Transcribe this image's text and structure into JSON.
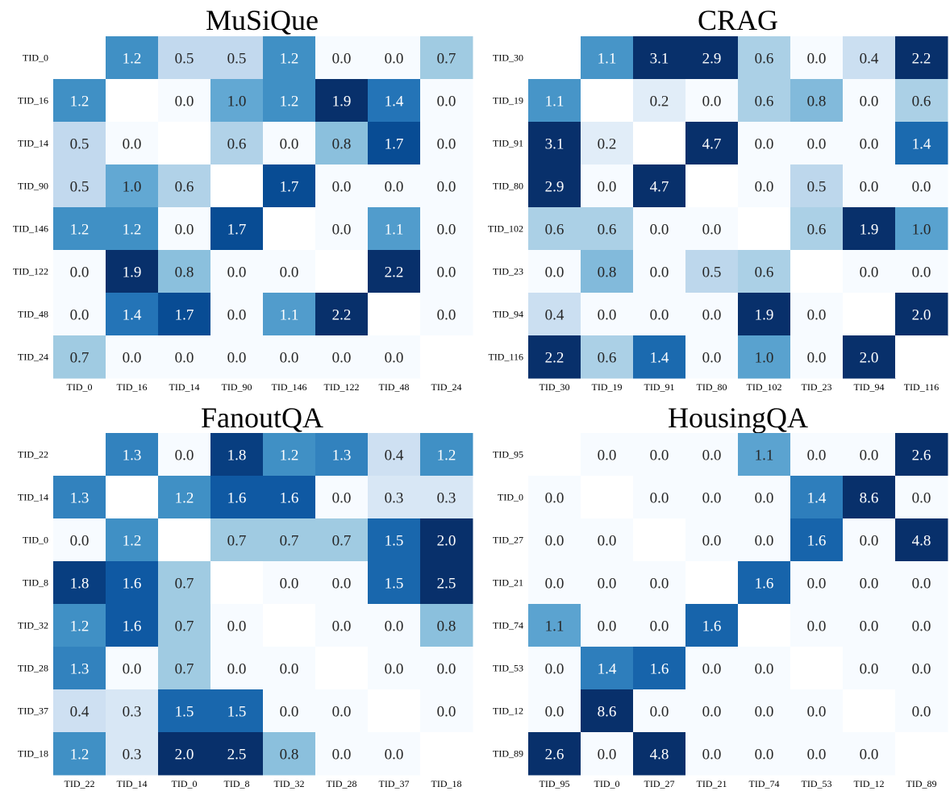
{
  "colormap": {
    "name": "Blues",
    "stops": [
      "#f7fbff",
      "#deebf7",
      "#c6dbef",
      "#9ecae1",
      "#6baed6",
      "#4292c6",
      "#2171b5",
      "#08519c",
      "#08306b"
    ]
  },
  "chart_data": [
    {
      "type": "heatmap",
      "title": "MuSiQue",
      "row_labels": [
        "TID_0",
        "TID_16",
        "TID_14",
        "TID_90",
        "TID_146",
        "TID_122",
        "TID_48",
        "TID_24"
      ],
      "col_labels": [
        "TID_0",
        "TID_16",
        "TID_14",
        "TID_90",
        "TID_146",
        "TID_122",
        "TID_48",
        "TID_24"
      ],
      "values": [
        [
          null,
          1.2,
          0.5,
          0.5,
          1.2,
          0.0,
          0.0,
          0.7
        ],
        [
          1.2,
          null,
          0.0,
          1.0,
          1.2,
          1.9,
          1.4,
          0.0
        ],
        [
          0.5,
          0.0,
          null,
          0.6,
          0.0,
          0.8,
          1.7,
          0.0
        ],
        [
          0.5,
          1.0,
          0.6,
          null,
          1.7,
          0.0,
          0.0,
          0.0
        ],
        [
          1.2,
          1.2,
          0.0,
          1.7,
          null,
          0.0,
          1.1,
          0.0
        ],
        [
          0.0,
          1.9,
          0.8,
          0.0,
          0.0,
          null,
          2.2,
          0.0
        ],
        [
          0.0,
          1.4,
          1.7,
          0.0,
          1.1,
          2.2,
          null,
          0.0
        ],
        [
          0.7,
          0.0,
          0.0,
          0.0,
          0.0,
          0.0,
          0.0,
          null
        ]
      ],
      "vmax": 1.9
    },
    {
      "type": "heatmap",
      "title": "CRAG",
      "row_labels": [
        "TID_30",
        "TID_19",
        "TID_91",
        "TID_80",
        "TID_102",
        "TID_23",
        "TID_94",
        "TID_116"
      ],
      "col_labels": [
        "TID_30",
        "TID_19",
        "TID_91",
        "TID_80",
        "TID_102",
        "TID_23",
        "TID_94",
        "TID_116"
      ],
      "values": [
        [
          null,
          1.1,
          3.1,
          2.9,
          0.6,
          0.0,
          0.4,
          2.2
        ],
        [
          1.1,
          null,
          0.2,
          0.0,
          0.6,
          0.8,
          0.0,
          0.6
        ],
        [
          3.1,
          0.2,
          null,
          4.7,
          0.0,
          0.0,
          0.0,
          1.4
        ],
        [
          2.9,
          0.0,
          4.7,
          null,
          0.0,
          0.5,
          0.0,
          0.0
        ],
        [
          0.6,
          0.6,
          0.0,
          0.0,
          null,
          0.6,
          1.9,
          1.0
        ],
        [
          0.0,
          0.8,
          0.0,
          0.5,
          0.6,
          null,
          0.0,
          0.0
        ],
        [
          0.4,
          0.0,
          0.0,
          0.0,
          1.9,
          0.0,
          null,
          2.0
        ],
        [
          2.2,
          0.6,
          1.4,
          0.0,
          1.0,
          0.0,
          2.0,
          null
        ]
      ],
      "vmax": 1.8
    },
    {
      "type": "heatmap",
      "title": "FanoutQA",
      "row_labels": [
        "TID_22",
        "TID_14",
        "TID_0",
        "TID_8",
        "TID_32",
        "TID_28",
        "TID_37",
        "TID_18"
      ],
      "col_labels": [
        "TID_22",
        "TID_14",
        "TID_0",
        "TID_8",
        "TID_32",
        "TID_28",
        "TID_37",
        "TID_18"
      ],
      "values": [
        [
          null,
          1.3,
          0.0,
          1.8,
          1.2,
          1.3,
          0.4,
          1.2
        ],
        [
          1.3,
          null,
          1.2,
          1.6,
          1.6,
          0.0,
          0.3,
          0.3
        ],
        [
          0.0,
          1.2,
          null,
          0.7,
          0.7,
          0.7,
          1.5,
          2.0
        ],
        [
          1.8,
          1.6,
          0.7,
          null,
          0.0,
          0.0,
          1.5,
          2.5
        ],
        [
          1.2,
          1.6,
          0.7,
          0.0,
          null,
          0.0,
          0.0,
          0.8
        ],
        [
          1.3,
          0.0,
          0.7,
          0.0,
          0.0,
          null,
          0.0,
          0.0
        ],
        [
          0.4,
          0.3,
          1.5,
          1.5,
          0.0,
          0.0,
          null,
          0.0
        ],
        [
          1.2,
          0.3,
          2.0,
          2.5,
          0.8,
          0.0,
          0.0,
          null
        ]
      ],
      "vmax": 1.9
    },
    {
      "type": "heatmap",
      "title": "HousingQA",
      "row_labels": [
        "TID_95",
        "TID_0",
        "TID_27",
        "TID_21",
        "TID_74",
        "TID_53",
        "TID_12",
        "TID_89"
      ],
      "col_labels": [
        "TID_95",
        "TID_0",
        "TID_27",
        "TID_21",
        "TID_74",
        "TID_53",
        "TID_12",
        "TID_89"
      ],
      "values": [
        [
          null,
          0.0,
          0.0,
          0.0,
          1.1,
          0.0,
          0.0,
          2.6
        ],
        [
          0.0,
          null,
          0.0,
          0.0,
          0.0,
          1.4,
          8.6,
          0.0
        ],
        [
          0.0,
          0.0,
          null,
          0.0,
          0.0,
          1.6,
          0.0,
          4.8
        ],
        [
          0.0,
          0.0,
          0.0,
          null,
          1.6,
          0.0,
          0.0,
          0.0
        ],
        [
          1.1,
          0.0,
          0.0,
          1.6,
          null,
          0.0,
          0.0,
          0.0
        ],
        [
          0.0,
          1.4,
          1.6,
          0.0,
          0.0,
          null,
          0.0,
          0.0
        ],
        [
          0.0,
          8.6,
          0.0,
          0.0,
          0.0,
          0.0,
          null,
          0.0
        ],
        [
          2.6,
          0.0,
          4.8,
          0.0,
          0.0,
          0.0,
          0.0,
          null
        ]
      ],
      "vmax": 2.0
    }
  ]
}
